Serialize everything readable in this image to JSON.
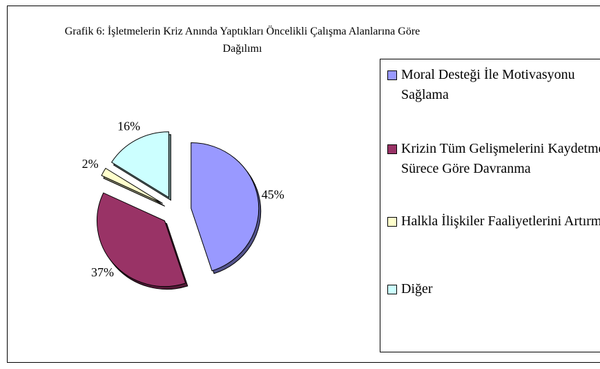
{
  "chart_data": {
    "type": "pie",
    "title": "Grafik 6: İşletmelerin Kriz Anında Yaptıkları Öncelikli Çalışma Alanlarına Göre Dağılımı",
    "categories": [
      "Moral Desteği İle Motivasyonu Sağlama",
      "Krizin Tüm Gelişmelerini Kaydetme ve Sürece Göre Davranma",
      "Halkla İlişkiler Faaliyetlerini Artırma",
      "Diğer"
    ],
    "values": [
      45,
      37,
      2,
      16
    ],
    "value_labels": [
      "45%",
      "37%",
      "2%",
      "16%"
    ],
    "colors": [
      "#9999ff",
      "#993366",
      "#ffffcc",
      "#ccffff"
    ],
    "legend": "right"
  }
}
